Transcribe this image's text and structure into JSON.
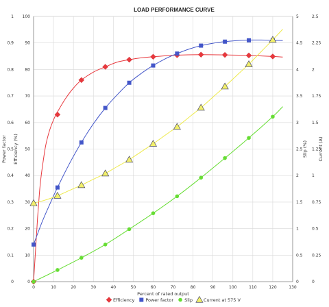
{
  "chart_data": {
    "type": "line",
    "title": "LOAD PERFORMANCE CURVE",
    "xlabel": "Percent of rated output",
    "xlim": [
      0,
      130
    ],
    "x_ticks": [
      "0",
      "10",
      "20",
      "30",
      "40",
      "50",
      "60",
      "70",
      "80",
      "90",
      "100",
      "110",
      "120",
      "130"
    ],
    "axes": {
      "power_factor": {
        "label": "Power factor",
        "lim": [
          0,
          1
        ],
        "ticks": [
          "0",
          "0.1",
          "0.2",
          "0.3",
          "0.4",
          "0.5",
          "0.6",
          "0.7",
          "0.8",
          "0.9",
          "1"
        ]
      },
      "efficiency": {
        "label": "Efficiency (%)",
        "lim": [
          0,
          100
        ],
        "ticks": [
          "0",
          "10",
          "20",
          "30",
          "40",
          "50",
          "60",
          "70",
          "80",
          "90",
          "100"
        ]
      },
      "slip": {
        "label": "Slip (%)",
        "lim": [
          0,
          5
        ],
        "ticks": [
          "0",
          "0.5",
          "1",
          "1.5",
          "2",
          "2.5",
          "3",
          "3.5",
          "4",
          "4.5",
          "5"
        ]
      },
      "current": {
        "label": "Current (A)",
        "lim": [
          0,
          2.5
        ],
        "ticks": [
          "0",
          "0.25",
          "0.5",
          "0.75",
          "1",
          "1.25",
          "1.5",
          "1.75",
          "2",
          "2.25",
          "2.5"
        ]
      }
    },
    "grid": true,
    "legend_position": "bottom",
    "series": [
      {
        "name": "Efficiency",
        "axis": "efficiency",
        "color": "#e8383d",
        "marker": "diamond",
        "points": [
          [
            0,
            0
          ],
          [
            12,
            63
          ],
          [
            24,
            76
          ],
          [
            36,
            81
          ],
          [
            48,
            83.7
          ],
          [
            60,
            84.8
          ],
          [
            72,
            85.4
          ],
          [
            84,
            85.6
          ],
          [
            96,
            85.5
          ],
          [
            108,
            85.3
          ],
          [
            120,
            84.9
          ]
        ],
        "curve": [
          [
            0,
            0
          ],
          [
            1,
            12
          ],
          [
            2,
            24
          ],
          [
            3,
            34
          ],
          [
            4,
            41
          ],
          [
            6,
            51
          ],
          [
            8,
            57
          ],
          [
            10,
            61
          ],
          [
            12,
            64
          ],
          [
            16,
            69
          ],
          [
            20,
            73
          ],
          [
            24,
            76
          ],
          [
            30,
            79
          ],
          [
            36,
            81
          ],
          [
            42,
            82.8
          ],
          [
            48,
            83.7
          ],
          [
            54,
            84.4
          ],
          [
            60,
            84.8
          ],
          [
            72,
            85.4
          ],
          [
            84,
            85.6
          ],
          [
            96,
            85.5
          ],
          [
            108,
            85.3
          ],
          [
            120,
            84.9
          ],
          [
            125,
            84.7
          ]
        ]
      },
      {
        "name": "Power factor",
        "axis": "power_factor",
        "color": "#4356c9",
        "marker": "square",
        "points": [
          [
            0,
            0.14
          ],
          [
            12,
            0.355
          ],
          [
            24,
            0.525
          ],
          [
            36,
            0.655
          ],
          [
            48,
            0.75
          ],
          [
            60,
            0.815
          ],
          [
            72,
            0.86
          ],
          [
            84,
            0.89
          ],
          [
            96,
            0.905
          ],
          [
            108,
            0.91
          ],
          [
            120,
            0.91
          ]
        ],
        "curve": [
          [
            0,
            0.14
          ],
          [
            4,
            0.22
          ],
          [
            8,
            0.29
          ],
          [
            12,
            0.355
          ],
          [
            18,
            0.445
          ],
          [
            24,
            0.525
          ],
          [
            30,
            0.595
          ],
          [
            36,
            0.655
          ],
          [
            42,
            0.705
          ],
          [
            48,
            0.75
          ],
          [
            54,
            0.785
          ],
          [
            60,
            0.815
          ],
          [
            66,
            0.84
          ],
          [
            72,
            0.86
          ],
          [
            78,
            0.877
          ],
          [
            84,
            0.89
          ],
          [
            90,
            0.899
          ],
          [
            96,
            0.905
          ],
          [
            102,
            0.909
          ],
          [
            108,
            0.911
          ],
          [
            114,
            0.911
          ],
          [
            120,
            0.91
          ],
          [
            125,
            0.909
          ]
        ]
      },
      {
        "name": "Slip",
        "axis": "slip",
        "color": "#66dd33",
        "marker": "circle",
        "points": [
          [
            0,
            0
          ],
          [
            12,
            0.22
          ],
          [
            24,
            0.45
          ],
          [
            36,
            0.7
          ],
          [
            48,
            0.99
          ],
          [
            60,
            1.29
          ],
          [
            72,
            1.61
          ],
          [
            84,
            1.96
          ],
          [
            96,
            2.33
          ],
          [
            108,
            2.71
          ],
          [
            120,
            3.11
          ]
        ],
        "curve": [
          [
            0,
            0
          ],
          [
            12,
            0.22
          ],
          [
            24,
            0.45
          ],
          [
            36,
            0.7
          ],
          [
            48,
            0.99
          ],
          [
            60,
            1.29
          ],
          [
            72,
            1.61
          ],
          [
            84,
            1.96
          ],
          [
            96,
            2.33
          ],
          [
            108,
            2.71
          ],
          [
            120,
            3.11
          ],
          [
            125,
            3.3
          ]
        ]
      },
      {
        "name": "Current at 575 V",
        "axis": "current",
        "color": "#f2f06a",
        "marker": "triangle",
        "points": [
          [
            0,
            0.74
          ],
          [
            12,
            0.81
          ],
          [
            24,
            0.91
          ],
          [
            36,
            1.02
          ],
          [
            48,
            1.15
          ],
          [
            60,
            1.3
          ],
          [
            72,
            1.46
          ],
          [
            84,
            1.64
          ],
          [
            96,
            1.84
          ],
          [
            108,
            2.05
          ],
          [
            120,
            2.28
          ]
        ],
        "curve": [
          [
            0,
            0.74
          ],
          [
            6,
            0.77
          ],
          [
            12,
            0.81
          ],
          [
            18,
            0.86
          ],
          [
            24,
            0.91
          ],
          [
            30,
            0.965
          ],
          [
            36,
            1.02
          ],
          [
            42,
            1.085
          ],
          [
            48,
            1.15
          ],
          [
            54,
            1.225
          ],
          [
            60,
            1.3
          ],
          [
            66,
            1.38
          ],
          [
            72,
            1.46
          ],
          [
            78,
            1.55
          ],
          [
            84,
            1.64
          ],
          [
            90,
            1.74
          ],
          [
            96,
            1.84
          ],
          [
            102,
            1.945
          ],
          [
            108,
            2.05
          ],
          [
            114,
            2.165
          ],
          [
            120,
            2.28
          ],
          [
            125,
            2.38
          ]
        ]
      }
    ]
  }
}
